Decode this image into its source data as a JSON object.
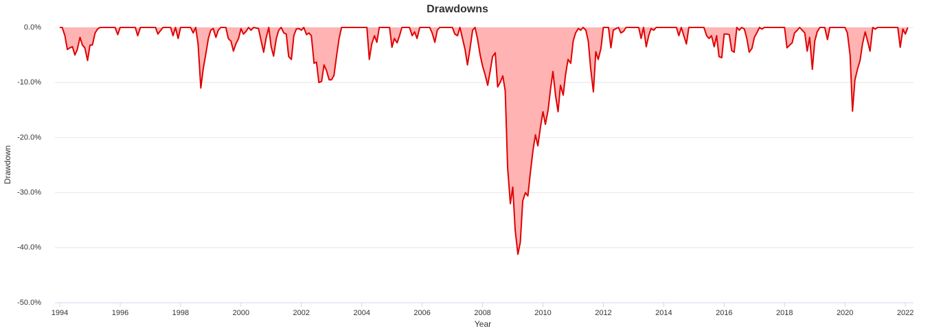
{
  "chart_data": {
    "type": "area",
    "title": "Drawdowns",
    "x_label": "Year",
    "y_label": "Drawdown",
    "line_color": "#e00000",
    "fill_color": "#ffb3b3",
    "grid": true,
    "xlim": [
      1993.84,
      2022.27
    ],
    "xticks": [
      1994,
      1996,
      1998,
      2000,
      2002,
      2004,
      2006,
      2008,
      2010,
      2012,
      2014,
      2016,
      2018,
      2020,
      2022
    ],
    "ylim": [
      -50,
      0
    ],
    "yticks": [
      {
        "value": 0,
        "label": "0.0%"
      },
      {
        "value": -10,
        "label": "-10.0%"
      },
      {
        "value": -20,
        "label": "-20.0%"
      },
      {
        "value": -30,
        "label": "-30.0%"
      },
      {
        "value": -40,
        "label": "-40.0%"
      },
      {
        "value": -50,
        "label": "-50.0%"
      }
    ],
    "x": [
      1994.0,
      1994.08,
      1994.17,
      1994.25,
      1994.33,
      1994.42,
      1994.5,
      1994.58,
      1994.67,
      1994.75,
      1994.83,
      1994.92,
      1995.0,
      1995.08,
      1995.17,
      1995.25,
      1995.33,
      1995.83,
      1995.92,
      1996.0,
      1996.5,
      1996.58,
      1996.67,
      1997.17,
      1997.25,
      1997.33,
      1997.42,
      1997.67,
      1997.75,
      1997.83,
      1997.92,
      1998.0,
      1998.33,
      1998.42,
      1998.5,
      1998.58,
      1998.67,
      1998.75,
      1998.83,
      1998.92,
      1999.0,
      1999.08,
      1999.17,
      1999.25,
      1999.33,
      1999.5,
      1999.58,
      1999.67,
      1999.75,
      1999.83,
      1999.92,
      2000.0,
      2000.08,
      2000.17,
      2000.25,
      2000.33,
      2000.42,
      2000.58,
      2000.67,
      2000.75,
      2000.83,
      2000.92,
      2001.0,
      2001.08,
      2001.17,
      2001.25,
      2001.33,
      2001.42,
      2001.5,
      2001.58,
      2001.67,
      2001.75,
      2001.83,
      2001.92,
      2002.0,
      2002.08,
      2002.17,
      2002.25,
      2002.33,
      2002.42,
      2002.5,
      2002.58,
      2002.67,
      2002.75,
      2002.83,
      2002.92,
      2003.0,
      2003.08,
      2003.17,
      2003.25,
      2003.33,
      2004.17,
      2004.25,
      2004.33,
      2004.42,
      2004.5,
      2004.58,
      2004.92,
      2005.0,
      2005.08,
      2005.17,
      2005.25,
      2005.33,
      2005.58,
      2005.67,
      2005.75,
      2005.83,
      2005.92,
      2006.25,
      2006.33,
      2006.42,
      2006.5,
      2006.58,
      2007.0,
      2007.08,
      2007.17,
      2007.25,
      2007.42,
      2007.5,
      2007.58,
      2007.67,
      2007.75,
      2007.83,
      2007.92,
      2008.0,
      2008.08,
      2008.17,
      2008.25,
      2008.33,
      2008.42,
      2008.5,
      2008.58,
      2008.67,
      2008.75,
      2008.83,
      2008.92,
      2009.0,
      2009.08,
      2009.17,
      2009.25,
      2009.33,
      2009.42,
      2009.5,
      2009.58,
      2009.67,
      2009.75,
      2009.83,
      2009.92,
      2010.0,
      2010.08,
      2010.17,
      2010.25,
      2010.33,
      2010.42,
      2010.5,
      2010.58,
      2010.67,
      2010.75,
      2010.83,
      2010.92,
      2011.0,
      2011.08,
      2011.17,
      2011.25,
      2011.33,
      2011.42,
      2011.5,
      2011.58,
      2011.67,
      2011.75,
      2011.83,
      2011.92,
      2012.0,
      2012.17,
      2012.25,
      2012.33,
      2012.42,
      2012.5,
      2012.58,
      2012.67,
      2012.75,
      2013.17,
      2013.25,
      2013.33,
      2013.42,
      2013.5,
      2013.58,
      2013.67,
      2013.75,
      2014.42,
      2014.5,
      2014.58,
      2014.75,
      2014.83,
      2015.33,
      2015.42,
      2015.5,
      2015.58,
      2015.67,
      2015.75,
      2015.83,
      2015.92,
      2016.0,
      2016.08,
      2016.17,
      2016.25,
      2016.33,
      2016.42,
      2016.5,
      2016.58,
      2016.67,
      2016.75,
      2016.83,
      2016.92,
      2017.0,
      2017.08,
      2017.17,
      2017.25,
      2017.33,
      2018.0,
      2018.08,
      2018.17,
      2018.25,
      2018.33,
      2018.42,
      2018.5,
      2018.67,
      2018.75,
      2018.83,
      2018.92,
      2019.0,
      2019.08,
      2019.17,
      2019.33,
      2019.42,
      2019.5,
      2020.0,
      2020.08,
      2020.17,
      2020.25,
      2020.33,
      2020.42,
      2020.5,
      2020.58,
      2020.67,
      2020.75,
      2020.83,
      2020.92,
      2021.0,
      2021.08,
      2021.75,
      2021.83,
      2021.92,
      2022.0,
      2022.08
    ],
    "values": [
      0,
      0,
      -1.5,
      -4,
      -3.7,
      -3.5,
      -5,
      -4,
      -1.8,
      -3.2,
      -3.7,
      -6,
      -3.2,
      -3.2,
      -1,
      -0.3,
      0,
      0,
      -1.3,
      0,
      0,
      -1.5,
      0,
      0,
      -1.2,
      -0.6,
      0,
      0,
      -1.5,
      0,
      -2,
      0,
      0,
      -1,
      0,
      -3,
      -11,
      -7.5,
      -5,
      -2,
      -0.5,
      -0.2,
      -1.8,
      -0.5,
      0,
      0,
      -2,
      -2.5,
      -4.3,
      -3,
      -2,
      -0.2,
      -1.2,
      -0.7,
      0,
      -0.5,
      0,
      -0.2,
      -2.5,
      -4.5,
      -2,
      0,
      -3.5,
      -5.2,
      -2,
      -0.5,
      0,
      -1,
      -1.2,
      -5.3,
      -5.8,
      -1.5,
      -0.3,
      -0.2,
      -0.5,
      0,
      -1.3,
      -1,
      -1.5,
      -6.5,
      -6.3,
      -10,
      -9.8,
      -6.8,
      -7.8,
      -9.5,
      -9.5,
      -8.7,
      -5,
      -2,
      0,
      0,
      -5.8,
      -3,
      -1.5,
      -2.7,
      0,
      0,
      -3.6,
      -2,
      -2.8,
      -1.5,
      0,
      0,
      -1.5,
      -0.8,
      -2,
      0,
      0,
      -1,
      -2.7,
      -0.5,
      0,
      0,
      -1.2,
      -1.5,
      0,
      -4,
      -6.8,
      -4,
      -0.5,
      0,
      -2,
      -5,
      -7,
      -8.5,
      -10.5,
      -8,
      -5.3,
      -4.6,
      -10.8,
      -10,
      -8.8,
      -11.5,
      -25.5,
      -32,
      -29,
      -36.8,
      -41.2,
      -39,
      -31.5,
      -30,
      -30.6,
      -26.5,
      -22.3,
      -19.5,
      -21.5,
      -18,
      -15.3,
      -17.6,
      -15,
      -11.2,
      -8,
      -12.5,
      -15.3,
      -10.5,
      -12.3,
      -8.5,
      -5.8,
      -6.5,
      -2.5,
      -1,
      -0.2,
      -0.5,
      0,
      -0.5,
      -2.5,
      -7.5,
      -11.7,
      -4.4,
      -5.8,
      -3.8,
      0,
      0,
      -3.7,
      -0.5,
      -0.2,
      0,
      -1,
      -0.7,
      0,
      0,
      -2,
      0,
      -3.5,
      -1.5,
      -0.2,
      -0.5,
      0,
      0,
      -1.5,
      0,
      -3,
      0,
      0,
      -1.5,
      -2,
      -1.5,
      -3.5,
      -1.5,
      -5.3,
      -5.5,
      -1.2,
      -1.2,
      -1.3,
      -4.2,
      -4.5,
      0,
      -0.5,
      0,
      -0.3,
      -2,
      -4.5,
      -3.8,
      -1.8,
      -1,
      0,
      -0.3,
      0,
      0,
      -3.7,
      -3.2,
      -2.8,
      -1,
      -0.5,
      0,
      -1,
      -4.3,
      -1.8,
      -7.6,
      -2.5,
      -0.8,
      0,
      0,
      -2.2,
      0,
      0,
      -1,
      -5,
      -15.2,
      -9.5,
      -7.5,
      -6,
      -3,
      -0.8,
      -2.5,
      -4.3,
      0,
      -0.3,
      0,
      0,
      -3.6,
      -0.3,
      -1.2,
      0
    ]
  }
}
